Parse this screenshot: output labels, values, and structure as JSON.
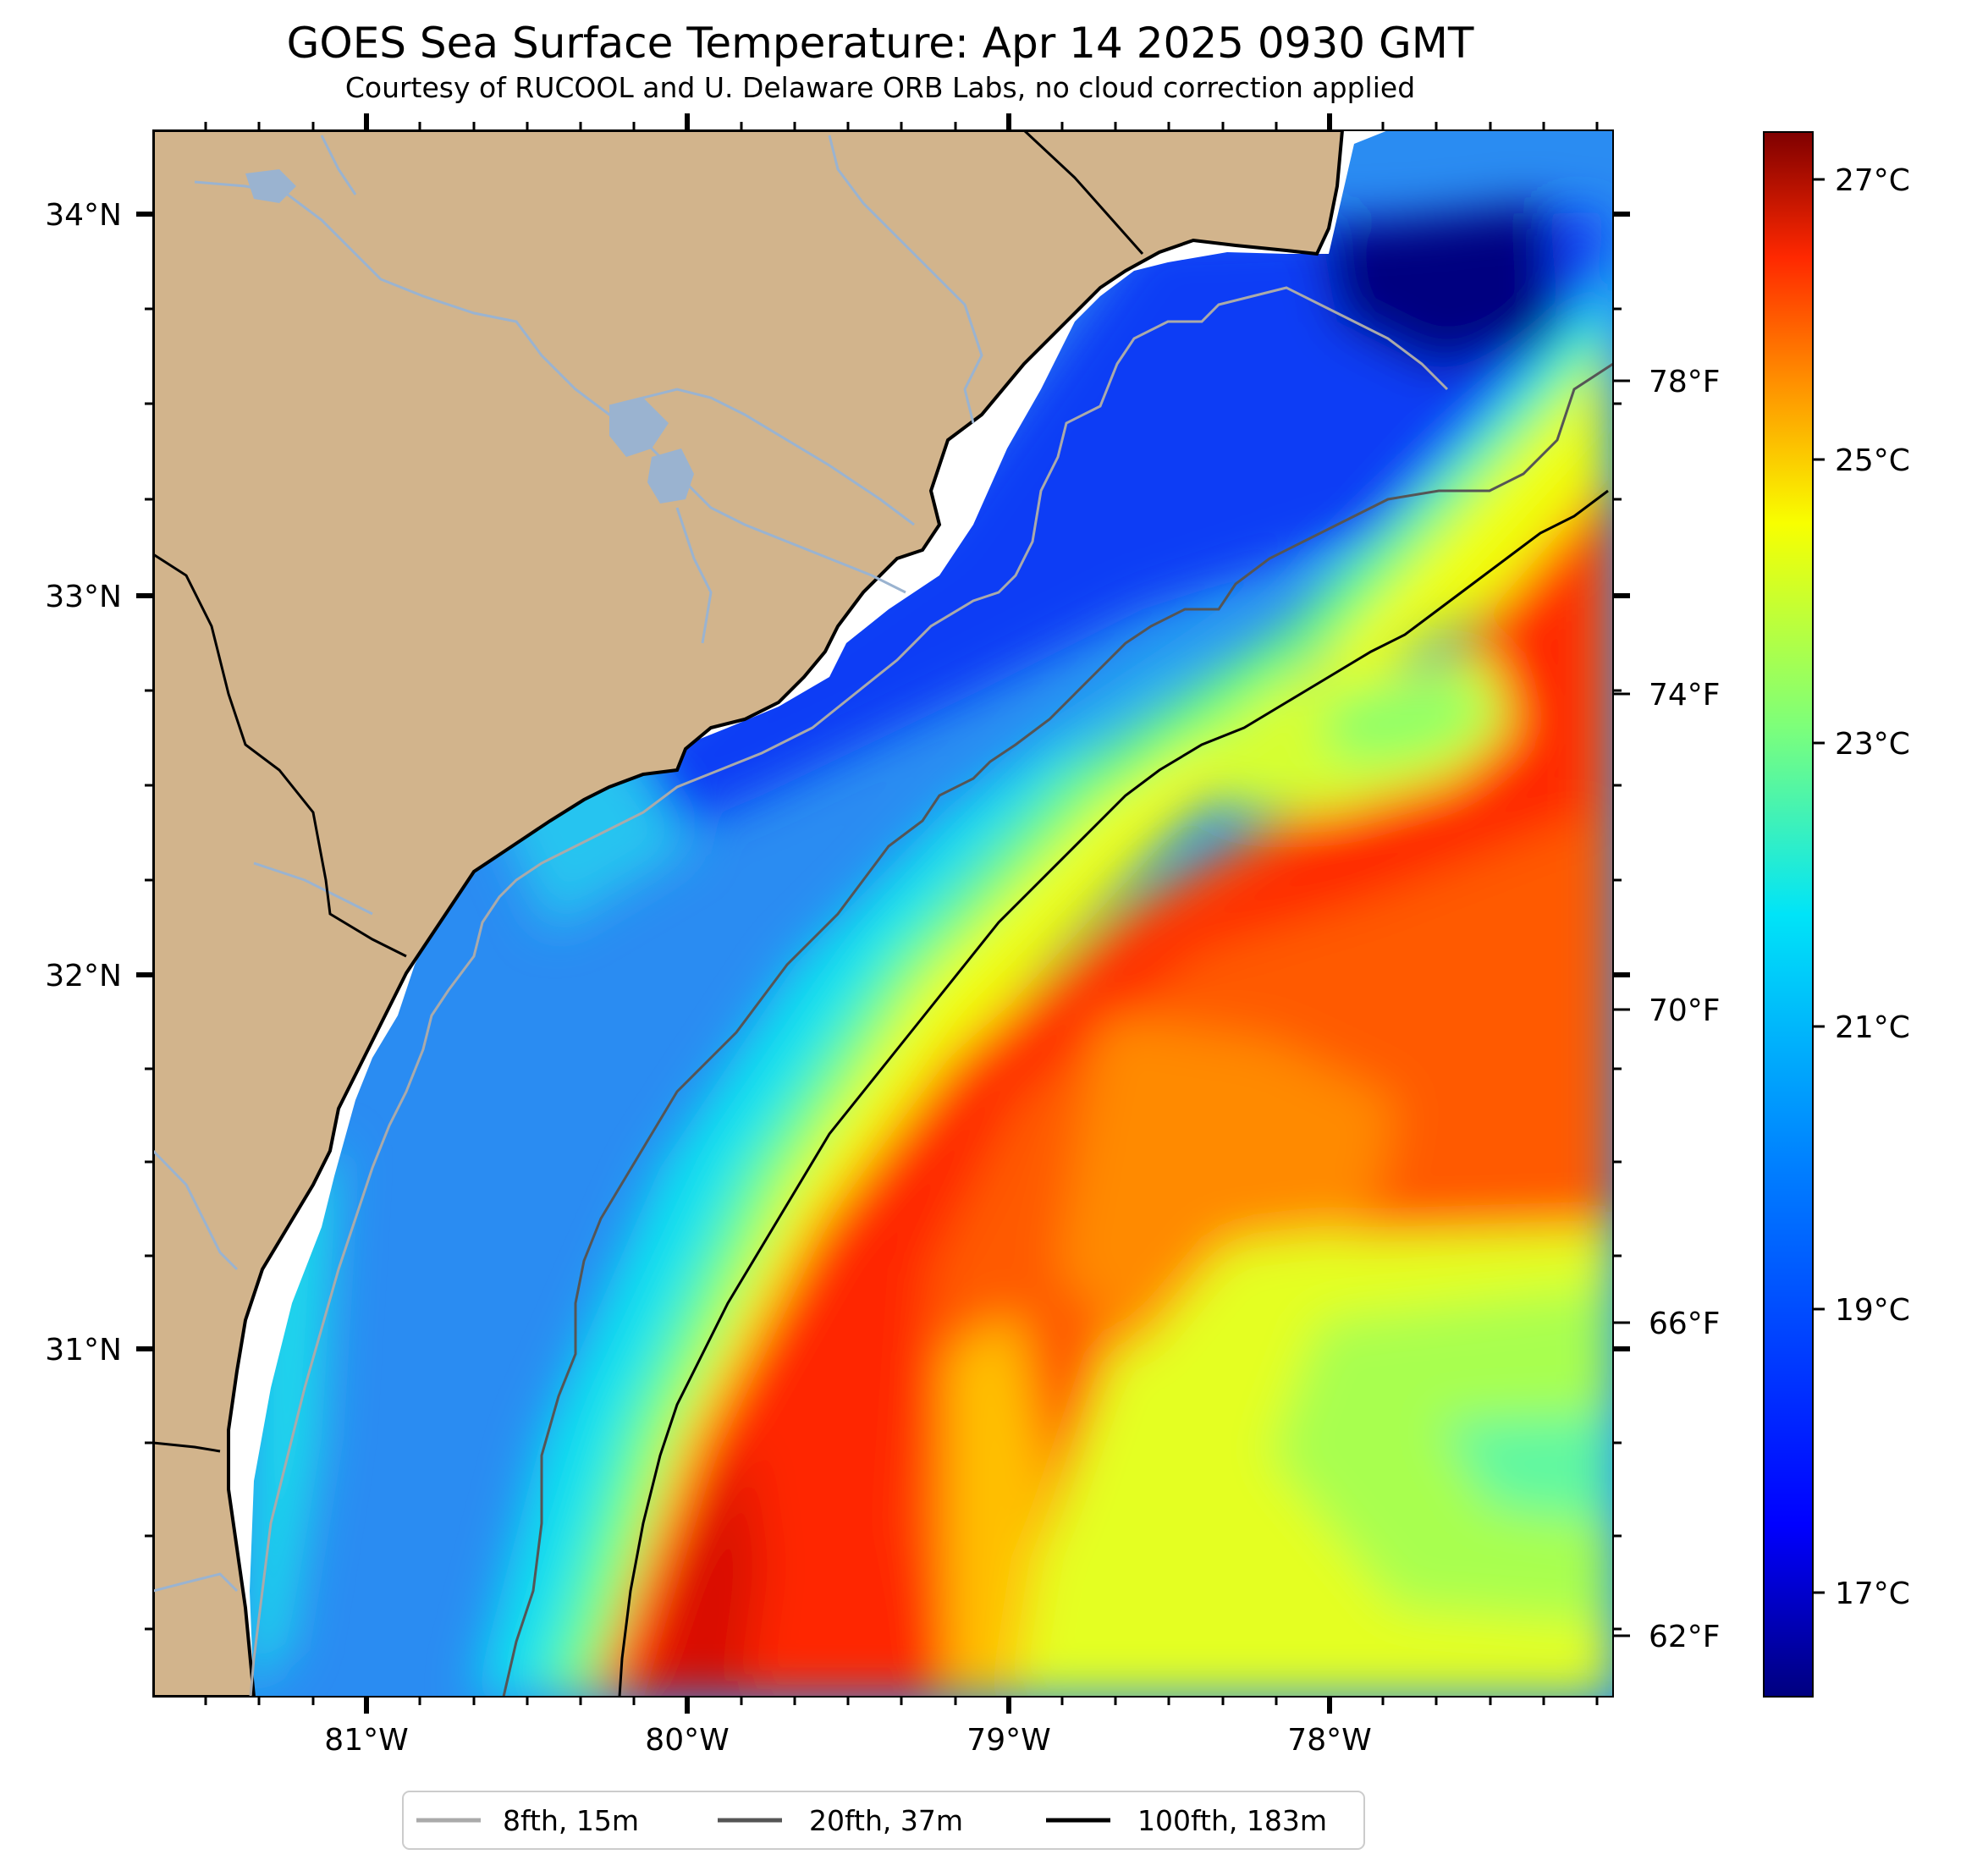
{
  "header": {
    "title": "GOES Sea Surface Temperature: Apr 14 2025 0930 GMT",
    "subtitle": "Courtesy of RUCOOL and U. Delaware ORB Labs, no cloud correction applied"
  },
  "axes": {
    "lat_labels": [
      "34°N",
      "33°N",
      "32°N",
      "31°N"
    ],
    "lon_labels": [
      "81°W",
      "80°W",
      "79°W",
      "78°W"
    ],
    "fahrenheit_labels": [
      "78°F",
      "74°F",
      "70°F",
      "66°F",
      "62°F"
    ]
  },
  "colorbar": {
    "labels": [
      "27°C",
      "25°C",
      "23°C",
      "21°C",
      "19°C",
      "17°C"
    ],
    "colors": [
      "#00007f",
      "#0000ff",
      "#0080ff",
      "#00e4f8",
      "#7dff7a",
      "#f8ff00",
      "#ff9000",
      "#ff2800",
      "#7f0000"
    ]
  },
  "legend": {
    "items": [
      {
        "label": "8fth, 15m",
        "color": "#aaaaaa"
      },
      {
        "label": "20fth, 37m",
        "color": "#555555"
      },
      {
        "label": "100fth, 183m",
        "color": "#000000"
      }
    ]
  },
  "map_colors": {
    "land": "#d2b48c",
    "rivers": "#9ab3d0",
    "coast_gap": "#ffffff"
  }
}
